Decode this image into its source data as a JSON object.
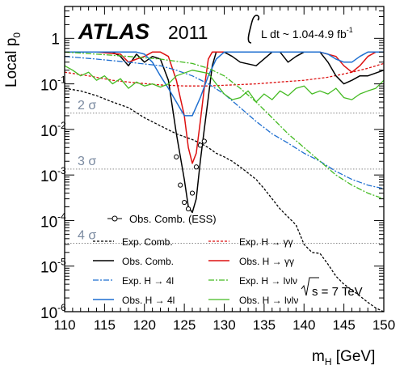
{
  "chart_data": {
    "type": "line",
    "experiment": "ATLAS",
    "year": "2011",
    "lumi_label": "L dt ~ 1.04-4.9 fb",
    "lumi_exponent": "-1",
    "energy_label": "s = 7 TeV",
    "ylabel": "Local p",
    "ylabel_sub": "0",
    "xlabel": "m",
    "xlabel_sub": "H",
    "xlabel_unit": " [GeV]",
    "xlim": [
      110,
      150
    ],
    "ylim": [
      1e-06,
      5
    ],
    "yscale": "log",
    "xticks": [
      110,
      115,
      120,
      125,
      130,
      135,
      140,
      145,
      150
    ],
    "yticks": [
      {
        "value": 1,
        "mant": "1",
        "exp": ""
      },
      {
        "value": 0.1,
        "mant": "10",
        "exp": "-1"
      },
      {
        "value": 0.01,
        "mant": "10",
        "exp": "-2"
      },
      {
        "value": 0.001,
        "mant": "10",
        "exp": "-3"
      },
      {
        "value": 0.0001,
        "mant": "10",
        "exp": "-4"
      },
      {
        "value": 1e-05,
        "mant": "10",
        "exp": "-5"
      },
      {
        "value": 1e-06,
        "mant": "10",
        "exp": "-6"
      }
    ],
    "sigma_lines": [
      {
        "label": "2 σ",
        "p": 0.02275
      },
      {
        "label": "3 σ",
        "p": 0.00135
      },
      {
        "label": "4 σ",
        "p": 3.17e-05
      }
    ],
    "series": [
      {
        "name": "Exp. Comb.",
        "color": "#000000",
        "dash": "3,2",
        "width": 1.3,
        "x": [
          110,
          112,
          114,
          116,
          118,
          120,
          122,
          124,
          126,
          127,
          128,
          129,
          130,
          131,
          132,
          133,
          134,
          135,
          136,
          137,
          138,
          139,
          140,
          141,
          142,
          143,
          144,
          145,
          146,
          147,
          148,
          149,
          150
        ],
        "y": [
          0.08,
          0.07,
          0.055,
          0.04,
          0.03,
          0.018,
          0.012,
          0.008,
          0.006,
          0.005,
          0.004,
          0.003,
          0.0025,
          0.002,
          0.0015,
          0.0011,
          0.0008,
          0.0005,
          0.0003,
          0.00018,
          0.00012,
          8e-05,
          3e-05,
          2e-05,
          1.9e-05,
          1.1e-05,
          6e-06,
          4e-06,
          3e-06,
          2.2e-06,
          1.6e-06,
          1.2e-06,
          1e-06
        ]
      },
      {
        "name": "Exp. H → γγ",
        "color": "#dd1111",
        "dash": "3,2",
        "width": 1.3,
        "x": [
          110,
          113,
          116,
          119,
          122,
          125,
          128,
          131,
          134,
          137,
          140,
          143,
          146,
          148,
          150
        ],
        "y": [
          0.18,
          0.15,
          0.12,
          0.105,
          0.095,
          0.09,
          0.09,
          0.095,
          0.1,
          0.11,
          0.12,
          0.14,
          0.18,
          0.22,
          0.28
        ]
      },
      {
        "name": "Obs. Comb.",
        "color": "#000000",
        "dash": "",
        "width": 1.5,
        "x": [
          110,
          112,
          114,
          116,
          117,
          118,
          119,
          120,
          121,
          122,
          123,
          124,
          125,
          125.5,
          126,
          126.5,
          127,
          127.5,
          128,
          128.5,
          129,
          130,
          131,
          132,
          134,
          136,
          137,
          138,
          139,
          140,
          141,
          142,
          143,
          144,
          145,
          146,
          147,
          148,
          150
        ],
        "y": [
          0.5,
          0.5,
          0.5,
          0.5,
          0.4,
          0.25,
          0.45,
          0.3,
          0.4,
          0.35,
          0.12,
          0.008,
          0.0008,
          0.0002,
          0.00015,
          0.0003,
          0.002,
          0.01,
          0.05,
          0.25,
          0.5,
          0.5,
          0.4,
          0.3,
          0.25,
          0.5,
          0.5,
          0.3,
          0.4,
          0.5,
          0.5,
          0.5,
          0.3,
          0.15,
          0.1,
          0.12,
          0.15,
          0.15,
          0.2
        ]
      },
      {
        "name": "Obs. H → γγ",
        "color": "#dd1111",
        "dash": "",
        "width": 1.5,
        "x": [
          110,
          114,
          117,
          118,
          119,
          120,
          121,
          122,
          123,
          124,
          125,
          125.5,
          126,
          126.5,
          127,
          127.5,
          128,
          128.5,
          129,
          129.5,
          130,
          132,
          135,
          138,
          140,
          142,
          144,
          145,
          146,
          147,
          148,
          149,
          150
        ],
        "y": [
          0.5,
          0.5,
          0.45,
          0.3,
          0.35,
          0.4,
          0.5,
          0.5,
          0.4,
          0.12,
          0.02,
          0.004,
          0.0018,
          0.003,
          0.015,
          0.08,
          0.35,
          0.5,
          0.5,
          0.5,
          0.5,
          0.5,
          0.5,
          0.5,
          0.5,
          0.5,
          0.4,
          0.25,
          0.18,
          0.25,
          0.4,
          0.5,
          0.5
        ]
      },
      {
        "name": "Exp. H → 4l",
        "color": "#1f6fd0",
        "dash": "7,2,2,2",
        "width": 1.3,
        "x": [
          110,
          114,
          118,
          122,
          124,
          126,
          128,
          130,
          132,
          134,
          136,
          138,
          140,
          142,
          144,
          146,
          148,
          150
        ],
        "y": [
          0.4,
          0.35,
          0.3,
          0.25,
          0.2,
          0.15,
          0.1,
          0.06,
          0.03,
          0.015,
          0.008,
          0.005,
          0.003,
          0.002,
          0.0012,
          0.0008,
          0.0006,
          0.0005
        ]
      },
      {
        "name": "Obs. H → 4l",
        "color": "#1f6fd0",
        "dash": "",
        "width": 1.5,
        "x": [
          110,
          114,
          117,
          119,
          120,
          121,
          122,
          123,
          124,
          125,
          126,
          127,
          128,
          129,
          130,
          132,
          134,
          136,
          138,
          140,
          141,
          142,
          143,
          144,
          145,
          146,
          147,
          148,
          150
        ],
        "y": [
          0.5,
          0.5,
          0.5,
          0.5,
          0.45,
          0.3,
          0.15,
          0.08,
          0.04,
          0.02,
          0.02,
          0.05,
          0.15,
          0.35,
          0.5,
          0.5,
          0.5,
          0.5,
          0.5,
          0.5,
          0.5,
          0.5,
          0.45,
          0.35,
          0.3,
          0.3,
          0.4,
          0.5,
          0.5
        ]
      },
      {
        "name": "Exp. H → lνlν",
        "color": "#44bb22",
        "dash": "7,2,2,2",
        "width": 1.3,
        "x": [
          110,
          114,
          118,
          122,
          126,
          128,
          130,
          132,
          134,
          136,
          138,
          140,
          142,
          144,
          146,
          148,
          150
        ],
        "y": [
          0.5,
          0.45,
          0.4,
          0.35,
          0.28,
          0.22,
          0.15,
          0.08,
          0.04,
          0.018,
          0.008,
          0.004,
          0.002,
          0.001,
          0.0006,
          0.0004,
          0.0003
        ]
      },
      {
        "name": "Obs. H → lνlν",
        "color": "#44bb22",
        "dash": "",
        "width": 1.3,
        "x": [
          110,
          111,
          112,
          113,
          114,
          115,
          116,
          117,
          118,
          119,
          120,
          121,
          122,
          123,
          124,
          126,
          128,
          129,
          130,
          131,
          132,
          133,
          134,
          135,
          136,
          137,
          138,
          139,
          140,
          141,
          142,
          143,
          144,
          145,
          146,
          147,
          148,
          149,
          150
        ],
        "y": [
          0.25,
          0.2,
          0.15,
          0.18,
          0.12,
          0.15,
          0.1,
          0.13,
          0.08,
          0.11,
          0.09,
          0.1,
          0.085,
          0.1,
          0.15,
          0.2,
          0.17,
          0.1,
          0.06,
          0.045,
          0.05,
          0.07,
          0.04,
          0.06,
          0.045,
          0.07,
          0.055,
          0.08,
          0.09,
          0.06,
          0.07,
          0.06,
          0.08,
          0.05,
          0.045,
          0.06,
          0.07,
          0.08,
          0.12
        ]
      }
    ],
    "ess_points": {
      "label": "Obs. Comb. (ESS)",
      "x": [
        124,
        124.5,
        125,
        125.5,
        126,
        126.5,
        127,
        127.5
      ],
      "y": [
        0.0025,
        0.0006,
        0.00025,
        0.00018,
        0.0004,
        0.0015,
        0.0045,
        0.0055
      ]
    },
    "legend": {
      "rows": [
        [
          "Exp. Comb.",
          "Exp. H → γγ"
        ],
        [
          "Obs. Comb.",
          "Obs. H → γγ"
        ],
        [
          "Exp. H → 4l",
          "Exp. H → lνlν"
        ],
        [
          "Obs. H → 4l",
          "Obs. H → lνlν"
        ]
      ]
    }
  }
}
